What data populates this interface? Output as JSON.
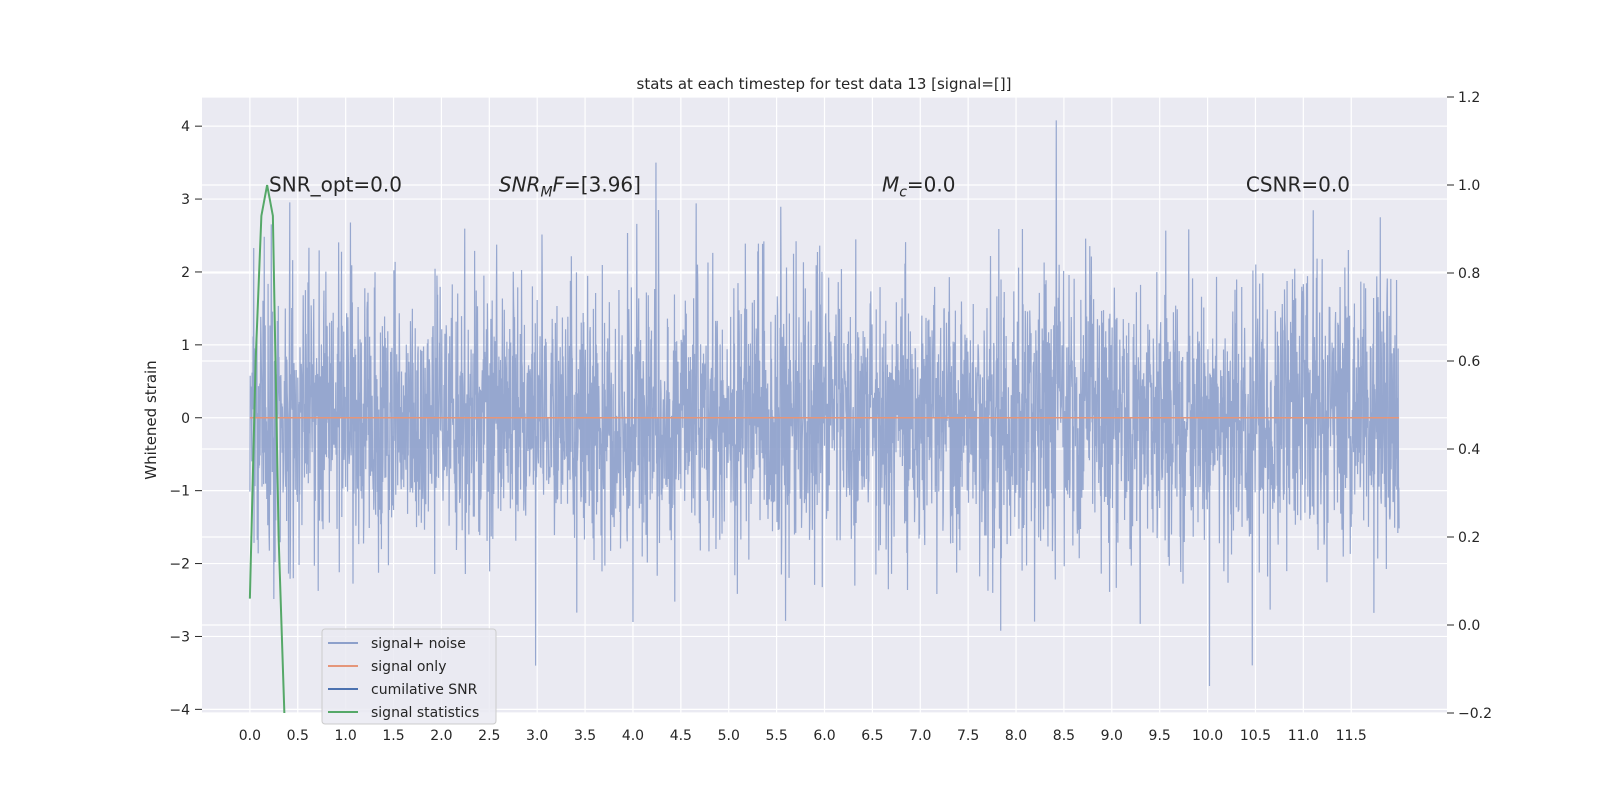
{
  "chart_data": {
    "type": "line",
    "title": "stats at each timestep for test data 13 [signal=[]]",
    "xlabel": "",
    "ylabel": "Whitened strain",
    "y2label": "",
    "xlim": [
      -0.5,
      12.5
    ],
    "ylim": [
      -4.05,
      4.4
    ],
    "y2lim": [
      -0.2,
      1.2
    ],
    "x_ticks": [
      0.0,
      0.5,
      1.0,
      1.5,
      2.0,
      2.5,
      3.0,
      3.5,
      4.0,
      4.5,
      5.0,
      5.5,
      6.0,
      6.5,
      7.0,
      7.5,
      8.0,
      8.5,
      9.0,
      9.5,
      10.0,
      10.5,
      11.0,
      11.5
    ],
    "x_tick_labels": [
      "0.0",
      "0.5",
      "1.0",
      "1.5",
      "2.0",
      "2.5",
      "3.0",
      "3.5",
      "4.0",
      "4.5",
      "5.0",
      "5.5",
      "6.0",
      "6.5",
      "7.0",
      "7.5",
      "8.0",
      "8.5",
      "9.0",
      "9.5",
      "10.0",
      "10.5",
      "11.0",
      "11.5"
    ],
    "y_ticks": [
      -4,
      -3,
      -2,
      -1,
      0,
      1,
      2,
      3,
      4
    ],
    "y_tick_labels": [
      "−4",
      "−3",
      "−2",
      "−1",
      "0",
      "1",
      "2",
      "3",
      "4"
    ],
    "y2_ticks": [
      -0.2,
      0.0,
      0.2,
      0.4,
      0.6,
      0.8,
      1.0,
      1.2
    ],
    "y2_tick_labels": [
      "−0.2",
      "0.0",
      "0.2",
      "0.4",
      "0.6",
      "0.8",
      "1.0",
      "1.2"
    ],
    "grid": true,
    "legend_position": "lower-left",
    "series": [
      {
        "name": "signal+ noise",
        "color": "#8da0cb",
        "axis": "left",
        "style": "dense noise, approx. unit-variance whitened strain from t=0.0 to t=12.0",
        "extremes": {
          "max": 4.08,
          "max_at": 8.42,
          "min": -3.68,
          "min_at": 10.02
        }
      },
      {
        "name": "signal only",
        "color": "#e5967a",
        "axis": "left",
        "x": [
          0.0,
          12.0
        ],
        "y": [
          0.0,
          0.0
        ]
      },
      {
        "name": "cumilative SNR",
        "color": "#4c72b0",
        "axis": "right",
        "x": [],
        "y": []
      },
      {
        "name": "signal statistics",
        "color": "#55a868",
        "axis": "right",
        "x": [
          0.0,
          0.06,
          0.12,
          0.18,
          0.24,
          0.3,
          0.36
        ],
        "y": [
          0.06,
          0.6,
          0.93,
          1.0,
          0.93,
          0.2,
          -0.2
        ]
      }
    ],
    "annotations": [
      {
        "text": "SNR_opt=0.0",
        "x": 0.2,
        "y": 3.2
      },
      {
        "text": "SNR",
        "sub": "M",
        "tail": "F=[3.96]",
        "x": 2.6,
        "y": 3.2
      },
      {
        "text": "M",
        "sub": "c",
        "tail": "=0.0",
        "x": 6.6,
        "y": 3.2
      },
      {
        "text": "CSNR=0.0",
        "x": 10.4,
        "y": 3.2
      }
    ]
  }
}
